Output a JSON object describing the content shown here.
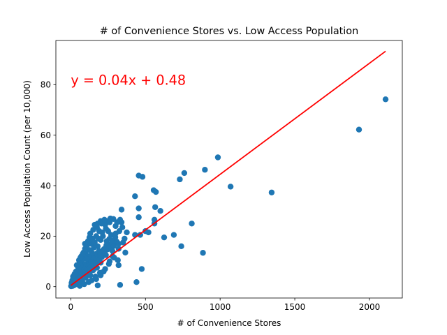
{
  "chart_data": {
    "type": "scatter",
    "title": "# of Convenience Stores vs. Low Access Population",
    "xlabel": "# of Convenience Stores",
    "ylabel": "Low Access Population Count (per 10,000)",
    "xlim": [
      -100,
      2220
    ],
    "ylim": [
      -4.5,
      97.5
    ],
    "xticks": [
      0,
      500,
      1000,
      1500,
      2000
    ],
    "yticks": [
      0,
      20,
      40,
      60,
      80
    ],
    "grid": false,
    "legend": "none",
    "point_color": "#1f77b4",
    "line_color": "#ff0000",
    "annotation": {
      "text": "y = 0.04x + 0.48",
      "x": 0,
      "y": 80,
      "color": "#ff0000"
    },
    "trendline": {
      "slope": 0.044,
      "intercept": 0.48,
      "x_range": [
        0,
        2108
      ]
    },
    "points": [
      [
        2108,
        74.2
      ],
      [
        1930,
        62.2
      ],
      [
        1345,
        37.3
      ],
      [
        1070,
        39.6
      ],
      [
        985,
        51.2
      ],
      [
        898,
        46.3
      ],
      [
        885,
        13.4
      ],
      [
        810,
        25.0
      ],
      [
        760,
        45.0
      ],
      [
        740,
        16.0
      ],
      [
        730,
        42.5
      ],
      [
        690,
        20.5
      ],
      [
        625,
        19.5
      ],
      [
        600,
        30.0
      ],
      [
        570,
        37.5
      ],
      [
        555,
        38.2
      ],
      [
        560,
        26.5
      ],
      [
        560,
        25.0
      ],
      [
        565,
        31.5
      ],
      [
        520,
        21.5
      ],
      [
        500,
        22.0
      ],
      [
        480,
        43.5
      ],
      [
        475,
        7.0
      ],
      [
        465,
        20.5
      ],
      [
        455,
        44.0
      ],
      [
        455,
        31.0
      ],
      [
        455,
        27.5
      ],
      [
        440,
        1.8
      ],
      [
        430,
        35.8
      ],
      [
        430,
        20.5
      ],
      [
        375,
        21.5
      ],
      [
        360,
        19.0
      ],
      [
        365,
        13.5
      ],
      [
        340,
        30.5
      ],
      [
        340,
        25.5
      ],
      [
        330,
        26.5
      ],
      [
        325,
        22.0
      ],
      [
        320,
        15.0
      ],
      [
        320,
        8.5
      ],
      [
        315,
        10.5
      ],
      [
        330,
        0.7
      ],
      [
        300,
        21.0
      ],
      [
        300,
        24.0
      ],
      [
        290,
        18.5
      ],
      [
        280,
        12.0
      ],
      [
        280,
        14.0
      ],
      [
        270,
        20.5
      ],
      [
        265,
        27.0
      ],
      [
        260,
        16.5
      ],
      [
        255,
        9.0
      ],
      [
        250,
        22.0
      ],
      [
        245,
        26.0
      ],
      [
        240,
        18.0
      ],
      [
        235,
        12.5
      ],
      [
        230,
        24.5
      ],
      [
        225,
        15.0
      ],
      [
        220,
        6.0
      ],
      [
        215,
        20.0
      ],
      [
        210,
        13.5
      ],
      [
        205,
        25.0
      ],
      [
        200,
        18.5
      ],
      [
        200,
        9.5
      ],
      [
        195,
        5.5
      ],
      [
        190,
        22.0
      ],
      [
        185,
        11.0
      ],
      [
        180,
        16.0
      ],
      [
        175,
        7.5
      ],
      [
        170,
        20.0
      ],
      [
        170,
        13.0
      ],
      [
        165,
        4.0
      ],
      [
        160,
        24.5
      ],
      [
        160,
        9.0
      ],
      [
        155,
        15.5
      ],
      [
        150,
        11.5
      ],
      [
        150,
        6.5
      ],
      [
        145,
        19.0
      ],
      [
        140,
        8.0
      ],
      [
        140,
        13.5
      ],
      [
        135,
        17.0
      ],
      [
        130,
        4.5
      ],
      [
        130,
        10.5
      ],
      [
        125,
        14.5
      ],
      [
        125,
        19.5
      ],
      [
        120,
        7.0
      ],
      [
        120,
        12.0
      ],
      [
        115,
        9.5
      ],
      [
        110,
        16.5
      ],
      [
        110,
        5.0
      ],
      [
        105,
        11.0
      ],
      [
        100,
        13.0
      ],
      [
        100,
        3.5
      ],
      [
        95,
        8.5
      ],
      [
        95,
        17.0
      ],
      [
        90,
        6.0
      ],
      [
        90,
        11.5
      ],
      [
        85,
        9.0
      ],
      [
        85,
        13.5
      ],
      [
        80,
        4.0
      ],
      [
        80,
        7.5
      ],
      [
        75,
        10.0
      ],
      [
        75,
        2.5
      ],
      [
        70,
        6.5
      ],
      [
        70,
        12.0
      ],
      [
        65,
        8.5
      ],
      [
        65,
        4.5
      ],
      [
        60,
        9.5
      ],
      [
        60,
        3.0
      ],
      [
        55,
        6.0
      ],
      [
        55,
        10.5
      ],
      [
        50,
        4.0
      ],
      [
        50,
        7.5
      ],
      [
        45,
        2.0
      ],
      [
        45,
        5.5
      ],
      [
        40,
        8.5
      ],
      [
        40,
        3.5
      ],
      [
        35,
        6.0
      ],
      [
        35,
        1.5
      ],
      [
        30,
        4.5
      ],
      [
        30,
        2.5
      ],
      [
        25,
        5.0
      ],
      [
        25,
        1.0
      ],
      [
        20,
        3.0
      ],
      [
        20,
        0.5
      ],
      [
        15,
        2.0
      ],
      [
        15,
        4.0
      ],
      [
        10,
        1.0
      ],
      [
        10,
        2.5
      ],
      [
        5,
        0.5
      ],
      [
        5,
        1.5
      ],
      [
        2,
        0.2
      ],
      [
        8,
        0.8
      ],
      [
        12,
        0.3
      ],
      [
        18,
        1.2
      ],
      [
        22,
        0.6
      ],
      [
        28,
        1.8
      ],
      [
        33,
        0.9
      ],
      [
        38,
        2.2
      ],
      [
        42,
        1.1
      ],
      [
        48,
        2.8
      ],
      [
        52,
        1.6
      ],
      [
        58,
        3.4
      ],
      [
        62,
        2.1
      ],
      [
        68,
        3.9
      ],
      [
        72,
        2.6
      ],
      [
        78,
        5.2
      ],
      [
        82,
        3.1
      ],
      [
        88,
        4.6
      ],
      [
        92,
        3.8
      ],
      [
        98,
        5.8
      ],
      [
        102,
        4.4
      ],
      [
        108,
        6.7
      ],
      [
        112,
        5.1
      ],
      [
        118,
        8.2
      ],
      [
        122,
        5.9
      ],
      [
        128,
        7.4
      ],
      [
        132,
        6.2
      ],
      [
        138,
        9.8
      ],
      [
        142,
        6.9
      ],
      [
        148,
        8.7
      ],
      [
        152,
        7.6
      ],
      [
        158,
        11.2
      ],
      [
        162,
        8.1
      ],
      [
        168,
        10.3
      ],
      [
        172,
        9.2
      ],
      [
        178,
        12.6
      ],
      [
        182,
        9.7
      ],
      [
        188,
        14.1
      ],
      [
        192,
        10.8
      ],
      [
        198,
        12.3
      ],
      [
        208,
        11.7
      ],
      [
        218,
        14.6
      ],
      [
        228,
        13.2
      ],
      [
        238,
        16.4
      ],
      [
        248,
        14.8
      ],
      [
        258,
        18.9
      ],
      [
        268,
        15.7
      ],
      [
        278,
        17.3
      ],
      [
        288,
        16.1
      ],
      [
        298,
        19.6
      ],
      [
        308,
        17.8
      ],
      [
        130,
        21.0
      ],
      [
        150,
        22.5
      ],
      [
        175,
        23.5
      ],
      [
        200,
        26.0
      ],
      [
        225,
        26.5
      ],
      [
        180,
        25.0
      ],
      [
        160,
        17.5
      ],
      [
        185,
        19.0
      ],
      [
        210,
        21.5
      ],
      [
        235,
        23.0
      ],
      [
        95,
        15.0
      ],
      [
        80,
        13.0
      ],
      [
        65,
        11.5
      ],
      [
        115,
        18.0
      ],
      [
        140,
        2.5
      ],
      [
        170,
        3.0
      ],
      [
        200,
        4.5
      ],
      [
        230,
        7.0
      ],
      [
        260,
        10.0
      ],
      [
        290,
        11.5
      ],
      [
        320,
        17.0
      ],
      [
        345,
        23.5
      ],
      [
        350,
        17.5
      ],
      [
        260,
        25.5
      ],
      [
        285,
        26.8
      ],
      [
        310,
        25.5
      ],
      [
        180,
        0.5
      ],
      [
        60,
        0.3
      ],
      [
        90,
        1.0
      ],
      [
        120,
        1.8
      ]
    ]
  }
}
